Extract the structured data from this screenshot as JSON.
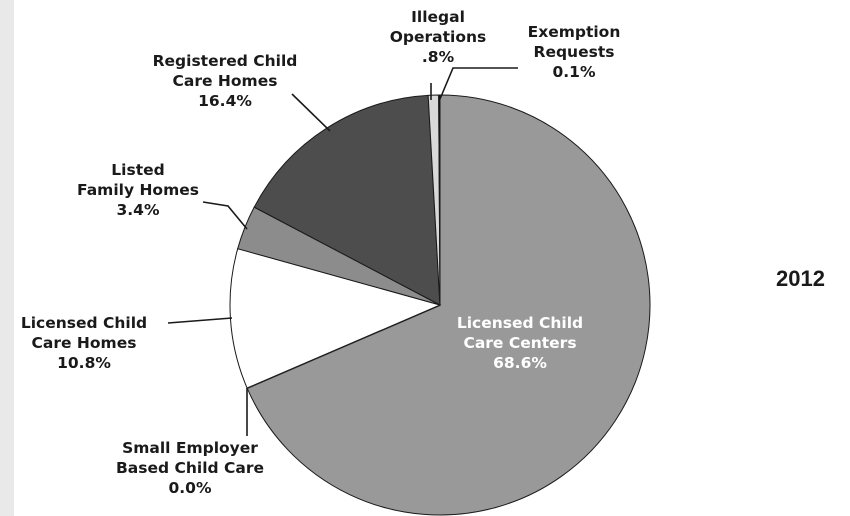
{
  "chart_data": {
    "type": "pie",
    "title": "",
    "start_angle_deg": 0,
    "direction": "clockwise",
    "slices": [
      {
        "name": "Licensed Child Care Centers",
        "label_lines": [
          "Licensed Child",
          "Care Centers"
        ],
        "value_label": "68.6%",
        "value": 68.6,
        "color": "#999999"
      },
      {
        "name": "Small Employer Based Child Care",
        "label_lines": [
          "Small Employer",
          "Based Child Care"
        ],
        "value_label": "0.0%",
        "value": 0.0,
        "color": "#bdbdbd"
      },
      {
        "name": "Licensed Child Care Homes",
        "label_lines": [
          "Licensed Child",
          "Care Homes"
        ],
        "value_label": "10.8%",
        "value": 10.8,
        "color": "#ffffff"
      },
      {
        "name": "Listed Family Homes",
        "label_lines": [
          "Listed",
          "Family Homes"
        ],
        "value_label": "3.4%",
        "value": 3.4,
        "color": "#8c8c8c"
      },
      {
        "name": "Registered Child Care Homes",
        "label_lines": [
          "Registered Child",
          "Care Homes"
        ],
        "value_label": "16.4%",
        "value": 16.4,
        "color": "#4d4d4d"
      },
      {
        "name": "Illegal Operations",
        "label_lines": [
          "Illegal",
          "Operations"
        ],
        "value_label": ".8%",
        "value": 0.8,
        "color": "#d9d9d9"
      },
      {
        "name": "Exemption Requests",
        "label_lines": [
          "Exemption",
          "Requests"
        ],
        "value_label": "0.1%",
        "value": 0.1,
        "color": "#111111"
      }
    ]
  },
  "year": "2012"
}
